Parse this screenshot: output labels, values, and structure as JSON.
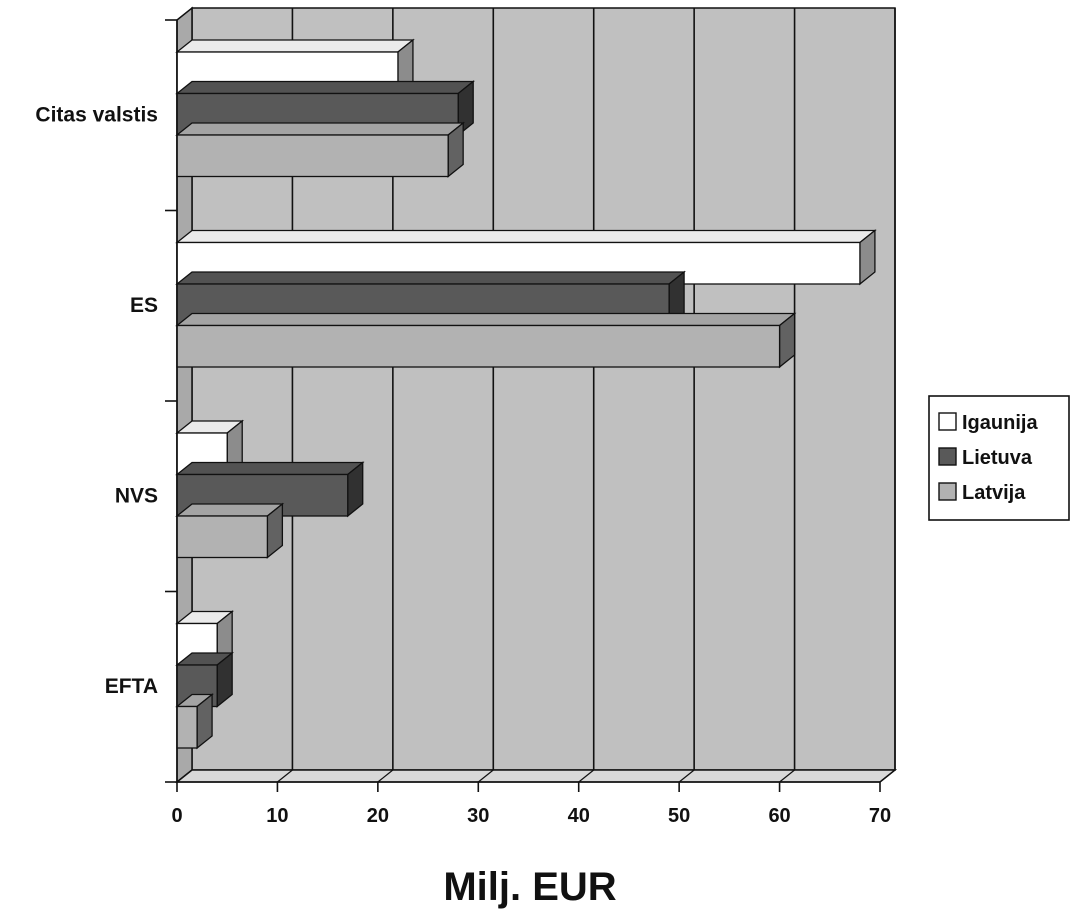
{
  "chart_data": {
    "type": "bar",
    "orientation": "horizontal",
    "style": "3d",
    "categories": [
      "Citas valstis",
      "ES",
      "NVS",
      "EFTA"
    ],
    "series": [
      {
        "name": "Igaunija",
        "values": [
          22,
          68,
          5,
          4
        ],
        "color": "#ffffff"
      },
      {
        "name": "Lietuva",
        "values": [
          28,
          49,
          17,
          4
        ],
        "color": "#595959"
      },
      {
        "name": "Latvija",
        "values": [
          27,
          60,
          9,
          2
        ],
        "color": "#b2b2b2"
      }
    ],
    "xlabel": "Milj. EUR",
    "ylabel": "",
    "title": "",
    "xlim": [
      0,
      70
    ],
    "xticks": [
      "0",
      "10",
      "20",
      "30",
      "40",
      "50",
      "60",
      "70"
    ],
    "grid": true,
    "legend": "right",
    "colors": {
      "plot_background": "#c0c0c0",
      "wall": "#a9a9a9",
      "outline": "#111111"
    }
  }
}
